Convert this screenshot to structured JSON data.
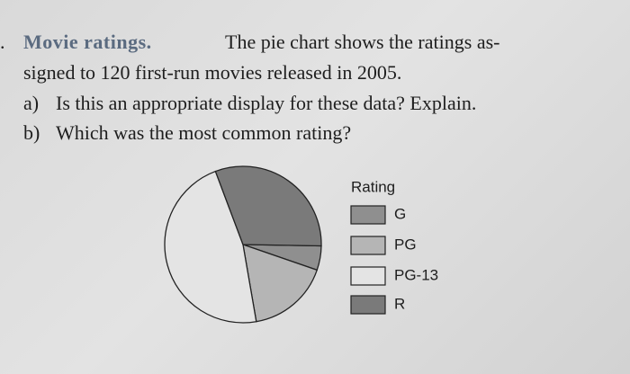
{
  "problem": {
    "number": ".",
    "heading": "Movie ratings.",
    "lines": [
      "The pie chart shows the ratings as-",
      "signed to 120 first-run movies released in 2005."
    ],
    "questions": [
      {
        "label": "a)",
        "text": "Is this an appropriate display for these data? Explain."
      },
      {
        "label": "b)",
        "text": "Which was the most common rating?"
      }
    ]
  },
  "chart_data": {
    "type": "pie",
    "legend_title": "Rating",
    "categories": [
      "G",
      "PG",
      "PG-13",
      "R"
    ],
    "values": [
      5,
      17,
      47,
      31
    ],
    "colors": [
      "#8f8f8f",
      "#b5b5b5",
      "#e4e4e4",
      "#7a7a7a"
    ],
    "legend": "right"
  }
}
